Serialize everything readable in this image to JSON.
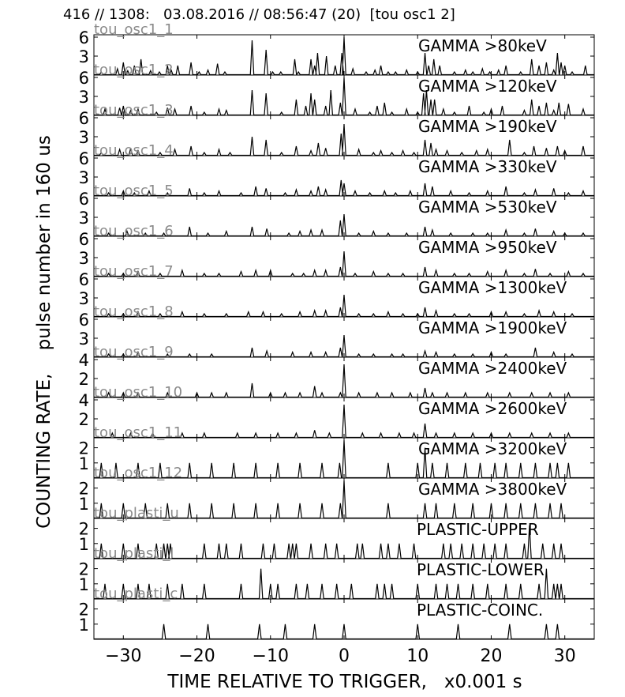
{
  "figure": {
    "title": "416 // 1308:   03.08.2016 // 08:56:47 (20)  [tou osc1 2]",
    "xlabel": "TIME RELATIVE TO TRIGGER,   x0.001 s",
    "ylabel": "COUNTING RATE,    pulse number in 160 us"
  },
  "chart_data": [
    {
      "type": "line",
      "channel": "tou_osc1_1",
      "label": "GAMMA >80keV",
      "ylim": [
        0,
        6
      ],
      "yticks": [
        3,
        6
      ],
      "xlim": [
        -34,
        34
      ],
      "xticks": [
        -30,
        -20,
        -10,
        0,
        10,
        20,
        30
      ],
      "x": [
        -33,
        -30.8,
        -30,
        -29.4,
        -28.5,
        -27.6,
        -26.3,
        -25.1,
        -24,
        -23.5,
        -22.6,
        -20.8,
        -19.7,
        -18.5,
        -17.2,
        -16.2,
        -12.5,
        -10.6,
        -9.7,
        -8.6,
        -6.7,
        -6.2,
        -4.5,
        -4,
        -3.6,
        -2.4,
        -1.2,
        -0.3,
        0,
        1.2,
        3,
        4.2,
        5,
        6,
        7,
        8.5,
        10,
        11,
        11.5,
        12.2,
        13,
        15,
        16.5,
        17.5,
        18.8,
        19.8,
        21,
        22,
        24,
        25.5,
        26.5,
        27.5,
        28.5,
        29,
        29.5,
        30,
        31,
        32.8
      ],
      "y": [
        0.5,
        1,
        2,
        0.7,
        1.5,
        2.5,
        0.7,
        0.5,
        1.5,
        0.8,
        1.5,
        2,
        0.5,
        0.8,
        1.8,
        0.5,
        5.5,
        4,
        0.5,
        0.5,
        2.5,
        0.5,
        2.5,
        1.5,
        3.5,
        3,
        1.5,
        3.5,
        6,
        1,
        0.5,
        0.8,
        1.5,
        0.5,
        0.5,
        0.8,
        0.5,
        3.5,
        1.5,
        2.5,
        1.5,
        0.5,
        0.8,
        0.5,
        1,
        0.5,
        0.8,
        1.5,
        0.5,
        2.5,
        1.5,
        2,
        0.8,
        3.5,
        2,
        1.5,
        0.5,
        1.5
      ]
    },
    {
      "type": "line",
      "channel": "tou_osc1_2",
      "label": "GAMMA >120keV",
      "ylim": [
        0,
        6
      ],
      "yticks": [
        3,
        6
      ],
      "xlim": [
        -34,
        34
      ],
      "xticks": [
        -30,
        -20,
        -10,
        0,
        10,
        20,
        30
      ],
      "x": [
        -32.5,
        -30.5,
        -30,
        -29,
        -28,
        -25.5,
        -24,
        -23,
        -20.8,
        -19,
        -17,
        -16,
        -12.5,
        -10.6,
        -8.5,
        -6.5,
        -5.2,
        -4.5,
        -4,
        -2.5,
        -1.8,
        -0.5,
        0,
        1.5,
        3.5,
        4.5,
        5.5,
        6.5,
        8.5,
        10,
        10.8,
        11.2,
        11.8,
        12.3,
        13.5,
        15,
        17,
        19,
        20,
        21.5,
        24.5,
        25.5,
        26.5,
        27.5,
        28.5,
        29.2,
        30.5,
        32.5
      ],
      "y": [
        1,
        1.2,
        1.5,
        0.8,
        1,
        0.5,
        1.2,
        1,
        1.5,
        0.5,
        1,
        0.8,
        4,
        3.5,
        0.5,
        2.5,
        1.5,
        3.5,
        2.5,
        1.5,
        4,
        2,
        6,
        1,
        0.5,
        1.5,
        2,
        0.5,
        1,
        0.5,
        3.5,
        4,
        2.5,
        2.5,
        1,
        0.5,
        1.5,
        0.5,
        1,
        1.5,
        0.8,
        2.5,
        1.5,
        2,
        0.8,
        2,
        1.8,
        1
      ]
    },
    {
      "type": "line",
      "channel": "tou_osc1_3",
      "label": "GAMMA >190keV",
      "ylim": [
        0,
        6
      ],
      "yticks": [
        3,
        6
      ],
      "xlim": [
        -34,
        34
      ],
      "xticks": [
        -30,
        -20,
        -10,
        0,
        10,
        20,
        30
      ],
      "x": [
        -33,
        -30.5,
        -29,
        -28,
        -25,
        -23,
        -20.8,
        -19,
        -17,
        -15.5,
        -12.5,
        -10.6,
        -8.5,
        -6.5,
        -4.5,
        -3.5,
        -2.5,
        -0.4,
        0,
        2,
        4,
        5,
        6.5,
        8,
        9.5,
        11,
        11.8,
        12.5,
        14,
        16,
        18,
        19.5,
        22.5,
        24.5,
        25.8,
        27.5,
        29,
        30,
        32.5
      ],
      "y": [
        0.5,
        1,
        1.2,
        0.8,
        0.5,
        1,
        1.5,
        0.5,
        1,
        0.5,
        3,
        2.5,
        0.5,
        1.5,
        0.8,
        2,
        1.2,
        3.5,
        5,
        1,
        0.5,
        0.8,
        0.5,
        0.8,
        0.5,
        2.5,
        2,
        1,
        0.8,
        0.5,
        0.8,
        1,
        2.5,
        0.5,
        1.5,
        1.2,
        1.5,
        0.8,
        1.5
      ]
    },
    {
      "type": "line",
      "channel": "tou_osc1_4",
      "label": "GAMMA >330keV",
      "ylim": [
        0,
        6
      ],
      "yticks": [
        3,
        6
      ],
      "xlim": [
        -34,
        34
      ],
      "xticks": [
        -30,
        -20,
        -10,
        0,
        10,
        20,
        30
      ],
      "x": [
        -32,
        -30,
        -28.5,
        -26.5,
        -24,
        -21,
        -19,
        -17,
        -14,
        -12,
        -10.6,
        -8,
        -6.5,
        -4.5,
        -3.5,
        -2.5,
        -0.4,
        0,
        1.5,
        3.5,
        5.5,
        7,
        9,
        11,
        12,
        14.5,
        17,
        19.5,
        22,
        24.5,
        26,
        28.5,
        30.5,
        32.5
      ],
      "y": [
        0.5,
        0.8,
        0.5,
        0.8,
        0.5,
        1.2,
        0.5,
        0.8,
        0.5,
        1.5,
        1.2,
        0.5,
        1,
        0.8,
        1.5,
        1,
        2.5,
        2,
        0.8,
        0.5,
        0.8,
        0.5,
        0.8,
        2,
        1.5,
        0.8,
        0.5,
        0.8,
        1.5,
        0.5,
        1,
        1.2,
        0.5,
        0.8
      ]
    },
    {
      "type": "line",
      "channel": "tou_osc1_5",
      "label": "GAMMA >530keV",
      "ylim": [
        0,
        6
      ],
      "yticks": [
        3,
        6
      ],
      "xlim": [
        -34,
        34
      ],
      "xticks": [
        -30,
        -20,
        -10,
        0,
        10,
        20,
        30
      ],
      "x": [
        -32,
        -29.5,
        -27,
        -24.5,
        -21,
        -18.5,
        -16,
        -12.5,
        -10.5,
        -7.5,
        -6,
        -4.5,
        -3,
        -0.5,
        0,
        2,
        4,
        6,
        8.5,
        11,
        12,
        14.5,
        17.5,
        19.5,
        22,
        24.5,
        26,
        28.5,
        30,
        32.5
      ],
      "y": [
        0.5,
        0.8,
        0.5,
        0.5,
        1.5,
        0.5,
        0.8,
        1.5,
        1.2,
        0.5,
        0.8,
        1,
        1,
        2.5,
        3.5,
        0.5,
        0.8,
        0.5,
        0.5,
        1.5,
        1,
        0.5,
        0.5,
        0.5,
        1,
        0.5,
        1.2,
        0.8,
        0.5,
        0.5
      ]
    },
    {
      "type": "line",
      "channel": "tou_osc1_6",
      "label": "GAMMA >950keV",
      "ylim": [
        0,
        6
      ],
      "yticks": [
        3,
        6
      ],
      "xlim": [
        -34,
        34
      ],
      "xticks": [
        -30,
        -20,
        -10,
        0,
        10,
        20,
        30
      ],
      "x": [
        -32,
        -30,
        -28,
        -25,
        -22,
        -19,
        -17,
        -14,
        -12,
        -10,
        -7,
        -5.5,
        -4,
        -2.5,
        -0.5,
        0,
        1.5,
        4,
        6,
        8,
        11,
        12.5,
        15,
        17,
        19.5,
        22,
        24.5,
        26,
        28,
        30.5,
        32.5
      ],
      "y": [
        0.5,
        0.5,
        0.8,
        0.5,
        1,
        0.5,
        0.5,
        0.8,
        1,
        1,
        0.5,
        0.5,
        1,
        1,
        1.5,
        4,
        0.5,
        0.8,
        0.5,
        0.5,
        1.5,
        1,
        0.5,
        0.5,
        0.8,
        1,
        0.5,
        1.2,
        0.5,
        0.8,
        0.5
      ]
    },
    {
      "type": "line",
      "channel": "tou_osc1_7",
      "label": "GAMMA >1300keV",
      "ylim": [
        0,
        6
      ],
      "yticks": [
        3,
        6
      ],
      "xlim": [
        -34,
        34
      ],
      "xticks": [
        -30,
        -20,
        -10,
        0,
        10,
        20,
        30
      ],
      "x": [
        -32,
        -30,
        -28,
        -25,
        -22,
        -19,
        -16,
        -13,
        -11,
        -8.5,
        -6,
        -4,
        -2.5,
        -0.5,
        0,
        2,
        4,
        6,
        8,
        10,
        11,
        12.5,
        15,
        17,
        20,
        22,
        24.5,
        26.5,
        28.5,
        31
      ],
      "y": [
        0.5,
        0.5,
        0.8,
        0.5,
        0.8,
        0.5,
        0.5,
        0.8,
        0.8,
        0.5,
        0.8,
        1,
        1,
        1.5,
        3.5,
        0.5,
        0.5,
        0.8,
        0.5,
        0.5,
        1.5,
        1,
        0.5,
        0.5,
        0.8,
        0.8,
        0.5,
        1,
        0.8,
        0.5
      ]
    },
    {
      "type": "line",
      "channel": "tou_osc1_8",
      "label": "GAMMA >1900keV",
      "ylim": [
        0,
        6
      ],
      "yticks": [
        3,
        6
      ],
      "xlim": [
        -34,
        34
      ],
      "xticks": [
        -30,
        -20,
        -10,
        0,
        10,
        20,
        30
      ],
      "x": [
        -32,
        -30,
        -28,
        -24,
        -21,
        -18,
        -12.5,
        -10.5,
        -7,
        -4.5,
        -2.5,
        -0.5,
        0,
        2,
        4,
        6.5,
        8,
        11,
        12.5,
        15,
        17.5,
        20,
        22,
        26,
        28.5,
        31
      ],
      "y": [
        0.5,
        0.5,
        0.8,
        0.5,
        0.5,
        0.5,
        1.5,
        1,
        0.8,
        0.8,
        0.8,
        1.5,
        3.5,
        0.5,
        0.5,
        0.5,
        0.5,
        1,
        0.8,
        0.5,
        0.5,
        0.8,
        0.5,
        1.5,
        0.8,
        0.5
      ]
    },
    {
      "type": "line",
      "channel": "tou_osc1_9",
      "label": "GAMMA >2400keV",
      "ylim": [
        0,
        4
      ],
      "yticks": [
        2,
        4
      ],
      "xlim": [
        -34,
        34
      ],
      "xticks": [
        -30,
        -20,
        -10,
        0,
        10,
        20,
        30
      ],
      "x": [
        -32,
        -30,
        -28,
        -24,
        -20,
        -18,
        -16,
        -12.5,
        -10,
        -8,
        -6,
        -4,
        -3,
        -0.5,
        0,
        2,
        4.5,
        6.5,
        9,
        11,
        12,
        14,
        16.5,
        19.5,
        22.5,
        25.5,
        28,
        30.5
      ],
      "y": [
        0.5,
        0.5,
        0.5,
        0.5,
        0.5,
        0.5,
        0.5,
        1.5,
        0.5,
        0.5,
        0.5,
        1.2,
        0.5,
        0.5,
        3.5,
        0.5,
        0.5,
        0.5,
        0.5,
        1,
        0.5,
        0.5,
        0.5,
        0.5,
        0.5,
        0.5,
        0.5,
        0.5
      ]
    },
    {
      "type": "line",
      "channel": "tou_osc1_10",
      "label": "GAMMA >2600keV",
      "ylim": [
        0,
        4
      ],
      "yticks": [
        2,
        4
      ],
      "xlim": [
        -34,
        34
      ],
      "xticks": [
        -30,
        -20,
        -10,
        0,
        10,
        20,
        30
      ],
      "x": [
        -31.5,
        -29,
        -26,
        -22,
        -19,
        -14.5,
        -12,
        -9,
        -6.5,
        -4,
        -2,
        0,
        2.5,
        5,
        7.5,
        9.5,
        11,
        12.5,
        15,
        17.5,
        20,
        22.5,
        25.5,
        28,
        30.5
      ],
      "y": [
        0.5,
        0.5,
        0.5,
        0.5,
        0.5,
        0.5,
        0.5,
        0.5,
        0.5,
        0.8,
        0.5,
        3.5,
        0.5,
        0.5,
        0.5,
        0.5,
        1.5,
        0.5,
        0.5,
        0.5,
        0.5,
        0.5,
        0.5,
        0.5,
        0.5
      ]
    },
    {
      "type": "line",
      "channel": "tou_osc1_11",
      "label": "GAMMA >3200keV",
      "ylim": [
        0,
        2.5
      ],
      "yticks": [
        1,
        2
      ],
      "xlim": [
        -34,
        34
      ],
      "xticks": [
        -30,
        -20,
        -10,
        0,
        10,
        20,
        30
      ],
      "x": [
        -33,
        -31,
        -28,
        -25,
        -21,
        -18,
        -15,
        -12,
        -9,
        -6,
        -3,
        -0.6,
        0,
        6,
        10,
        11,
        12,
        14,
        16.5,
        18.5,
        20.5,
        22,
        24,
        26,
        28,
        29,
        30.5
      ],
      "y": [
        1,
        1,
        1,
        1,
        1,
        1,
        1,
        1,
        1,
        1,
        1,
        1,
        2.5,
        1,
        1,
        2,
        1,
        1,
        1,
        1,
        1,
        1,
        1,
        1,
        1,
        1,
        1
      ]
    },
    {
      "type": "line",
      "channel": "tou_osc1_12",
      "label": "GAMMA >3800keV",
      "ylim": [
        0,
        2.5
      ],
      "yticks": [
        1,
        2
      ],
      "xlim": [
        -34,
        34
      ],
      "xticks": [
        -30,
        -20,
        -10,
        0,
        10,
        20,
        30
      ],
      "x": [
        -33,
        -30,
        -27,
        -24,
        -21,
        -18,
        -15,
        -12,
        -9,
        -6,
        -3,
        -0.5,
        0,
        6,
        11,
        12.5,
        15,
        17.5,
        20,
        22,
        24,
        26,
        28,
        29.5
      ],
      "y": [
        1,
        1,
        1,
        1,
        1,
        1,
        1,
        1,
        1,
        1,
        1,
        1,
        2.5,
        1,
        1,
        1,
        1,
        1,
        1,
        1,
        1,
        1,
        1,
        1
      ]
    },
    {
      "type": "line",
      "channel": "tou_plasti_u",
      "label": "PLASTIC-UPPER",
      "ylim": [
        0,
        2.5
      ],
      "yticks": [
        1,
        2
      ],
      "xlim": [
        -34,
        34
      ],
      "xticks": [
        -30,
        -20,
        -10,
        0,
        10,
        20,
        30
      ],
      "x": [
        -33,
        -30,
        -28,
        -25.5,
        -24.5,
        -24,
        -23.6,
        -19,
        -17,
        -16,
        -14,
        -11,
        -9.5,
        -7.5,
        -7,
        -6.5,
        -4.5,
        -2.5,
        -1,
        1.8,
        2.5,
        5,
        6,
        7.5,
        9.5,
        13.5,
        14.5,
        16,
        17.5,
        19,
        20.5,
        22,
        24.5,
        25.2,
        27,
        28.5,
        29.5
      ],
      "y": [
        1,
        1,
        1,
        1,
        1,
        1,
        1,
        1,
        1,
        1,
        1,
        1,
        1,
        1,
        1,
        1,
        1,
        1,
        1,
        1,
        1,
        1,
        1,
        1,
        1,
        1,
        1,
        1,
        1,
        1,
        1,
        1,
        1,
        2.2,
        1,
        1,
        1
      ]
    },
    {
      "type": "line",
      "channel": "tou_plasti_l",
      "label": "PLASTIC-LOWER",
      "ylim": [
        0,
        2.5
      ],
      "yticks": [
        1,
        2
      ],
      "xlim": [
        -34,
        34
      ],
      "xticks": [
        -30,
        -20,
        -10,
        0,
        10,
        20,
        30
      ],
      "x": [
        -32.5,
        -30,
        -28,
        -26.5,
        -24,
        -22,
        -19,
        -14,
        -11.3,
        -10,
        -9,
        -6.5,
        -5,
        -3,
        -1,
        1,
        4.5,
        5.5,
        6.5,
        10,
        12.5,
        14,
        15.5,
        17.5,
        19.5,
        22,
        24,
        26.5,
        27.5,
        28.5,
        29,
        29.5
      ],
      "y": [
        1,
        1,
        1,
        1,
        1,
        1,
        1,
        1,
        2,
        1,
        1,
        1,
        1,
        1,
        1,
        1,
        1,
        1,
        1,
        1,
        1,
        1,
        1,
        1,
        1,
        1,
        1,
        1,
        2,
        1,
        1,
        1
      ]
    },
    {
      "type": "line",
      "channel": "tou_plasti_c",
      "label": "PLASTIC-COINC.",
      "ylim": [
        0,
        2.5
      ],
      "yticks": [
        1,
        2
      ],
      "xlim": [
        -34,
        34
      ],
      "xticks": [
        -30,
        -20,
        -10,
        0,
        10,
        20,
        30
      ],
      "x": [
        -24.5,
        -18.5,
        -11.5,
        -8,
        -4,
        0,
        10,
        15.5,
        22.5,
        27.5,
        29
      ],
      "y": [
        1,
        1,
        1,
        1,
        1,
        1,
        1,
        1,
        1,
        1,
        1
      ]
    }
  ]
}
